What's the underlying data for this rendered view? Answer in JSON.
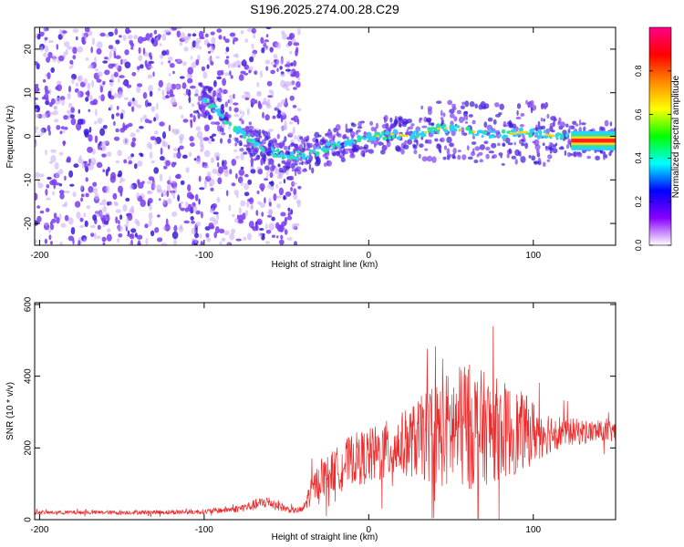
{
  "title": "S196.2025.274.00.28.C29",
  "colors": {
    "snr_line": "#ee2a2a",
    "ridge_hot": "#ff2020",
    "ridge_warm": "#ffd21e",
    "ridge_mid": "#26e89a",
    "ridge_cool": "#2ad0ff",
    "speckle": "#7a3cf0",
    "speckle_light": "#c9a8f8",
    "speckle_dark": "#3a1ad8"
  },
  "chart_data": [
    {
      "type": "heatmap",
      "name": "spectrogram",
      "title": "S196.2025.274.00.28.C29",
      "xlabel": "Height of straight line (km)",
      "ylabel": "Frequency (Hz)",
      "xlim": [
        -203,
        150
      ],
      "ylim": [
        -25,
        25
      ],
      "xticks": [
        -200,
        -100,
        0,
        100
      ],
      "yticks": [
        -20,
        -10,
        0,
        10,
        20
      ],
      "ridge": {
        "x": [
          -105,
          -95,
          -85,
          -75,
          -65,
          -55,
          -45,
          -35,
          -25,
          -15,
          -5,
          5,
          15,
          25,
          35,
          45,
          55,
          65,
          75,
          85,
          95,
          105,
          115,
          125,
          135,
          150
        ],
        "y": [
          9,
          7,
          3,
          0,
          -3,
          -4,
          -4.5,
          -4,
          -2.5,
          -1.5,
          -0.5,
          0,
          0.5,
          0,
          1,
          2,
          1.5,
          1,
          0.5,
          0.5,
          1,
          0.5,
          0,
          -0.5,
          -1,
          -1
        ]
      },
      "noise_region_x": [
        -203,
        -42
      ],
      "colorbar": {
        "label": "Normalized spectral amplitude",
        "range": [
          0.0,
          1.0
        ],
        "ticks": [
          0.0,
          0.2,
          0.4,
          0.6,
          0.8
        ],
        "tick_labels": [
          "0.0",
          "0.2",
          "0.4",
          "0.6",
          "0.8"
        ],
        "gradient": [
          "#ffffff",
          "#8800ff",
          "#0000ff",
          "#00ffff",
          "#00ff00",
          "#ffff00",
          "#ff8800",
          "#ff0000",
          "#ff0088"
        ]
      }
    },
    {
      "type": "line",
      "name": "snr",
      "xlabel": "Height of straight line (km)",
      "ylabel": "SNR (10 * v/v)",
      "xlim": [
        -203,
        150
      ],
      "ylim": [
        0,
        605
      ],
      "xticks": [
        -200,
        -100,
        0,
        100
      ],
      "yticks": [
        0,
        200,
        400,
        600
      ],
      "envelope": {
        "x": [
          -203,
          -150,
          -100,
          -80,
          -70,
          -62,
          -55,
          -50,
          -45,
          -40,
          -35,
          -30,
          -20,
          -10,
          0,
          10,
          20,
          30,
          40,
          50,
          60,
          70,
          80,
          90,
          100,
          110,
          120,
          130,
          140,
          150
        ],
        "base": [
          20,
          20,
          22,
          30,
          40,
          50,
          40,
          30,
          25,
          28,
          80,
          110,
          140,
          170,
          175,
          190,
          210,
          225,
          240,
          250,
          260,
          255,
          250,
          245,
          245,
          245,
          245,
          245,
          245,
          245
        ],
        "amp": [
          5,
          6,
          7,
          10,
          15,
          18,
          15,
          10,
          8,
          10,
          40,
          50,
          60,
          70,
          80,
          85,
          90,
          110,
          150,
          170,
          180,
          160,
          140,
          120,
          90,
          60,
          40,
          35,
          30,
          30
        ]
      }
    }
  ]
}
